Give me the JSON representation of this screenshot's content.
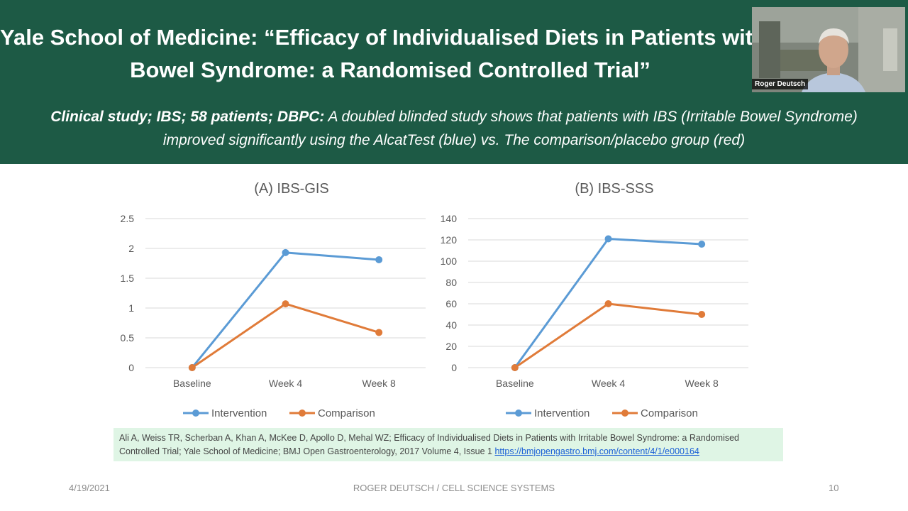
{
  "slide": {
    "title_line1": "Yale School of Medicine: “Efficacy of Individualised Diets in Patients with Irritable",
    "title_line2": "Bowel Syndrome: a Randomised Controlled Trial”",
    "subtitle_lead": "Clinical study; IBS; 58 patients; DBPC:",
    "subtitle_rest": " A doubled blinded study shows that patients with IBS (Irritable Bowel Syndrome)",
    "subtitle_line2": "improved significantly using the AlcatTest (blue) vs. The comparison/placebo group (red)",
    "colors": {
      "header_bg": "#1d5a45",
      "intervention": "#5b9bd5",
      "comparison": "#e07b39",
      "reference_bg": "#dff5e5"
    }
  },
  "video": {
    "participant_name": "Roger Deutsch"
  },
  "chart_data": [
    {
      "type": "line",
      "title": "(A) IBS-GIS",
      "categories": [
        "Baseline",
        "Week 4",
        "Week 8"
      ],
      "series": [
        {
          "name": "Intervention",
          "values": [
            0,
            1.93,
            1.81
          ]
        },
        {
          "name": "Comparison",
          "values": [
            0,
            1.07,
            0.59
          ]
        }
      ],
      "yticks": [
        "0",
        "0.5",
        "1",
        "1.5",
        "2",
        "2.5"
      ],
      "ylim": [
        0,
        2.5
      ],
      "xlabel": "",
      "ylabel": "",
      "grid": true,
      "legend": "bottom"
    },
    {
      "type": "line",
      "title": "(B) IBS-SSS",
      "categories": [
        "Baseline",
        "Week 4",
        "Week 8"
      ],
      "series": [
        {
          "name": "Intervention",
          "values": [
            0,
            121,
            116
          ]
        },
        {
          "name": "Comparison",
          "values": [
            0,
            60,
            50
          ]
        }
      ],
      "yticks": [
        "0",
        "20",
        "40",
        "60",
        "80",
        "100",
        "120",
        "140"
      ],
      "ylim": [
        0,
        140
      ],
      "xlabel": "",
      "ylabel": "",
      "grid": true,
      "legend": "bottom"
    }
  ],
  "reference": {
    "text_line1": "Ali A, Weiss TR, Scherban A, Khan A, McKee D, Apollo D, Mehal WZ; Efficacy of Individualised Diets in Patients with Irritable Bowel Syndrome: a Randomised",
    "text_line2": "Controlled Trial; Yale School of Medicine; BMJ Open Gastroenterology, 2017 Volume 4, Issue 1 ",
    "link": "https://bmjopengastro.bmj.com/content/4/1/e000164"
  },
  "footer": {
    "date": "4/19/2021",
    "center": "ROGER DEUTSCH / CELL SCIENCE SYSTEMS",
    "page": "10"
  }
}
